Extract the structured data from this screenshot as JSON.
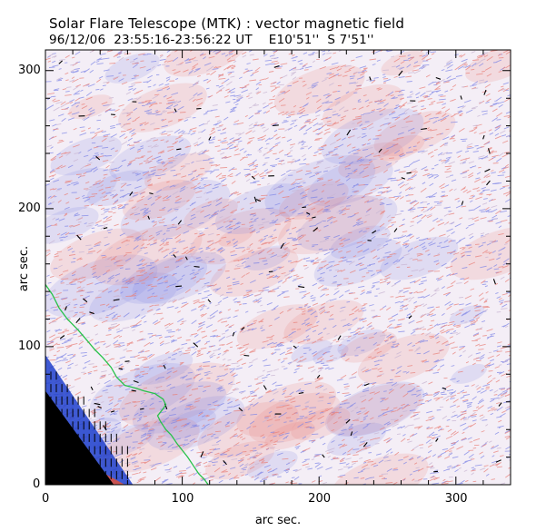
{
  "chart_data": {
    "type": "heatmap",
    "title": "Solar Flare Telescope (MTK) : vector magnetic field",
    "subtitle": {
      "date": "96/12/06",
      "time_range": "23:55:16-23:56:22 UT",
      "lon": "E10'51''",
      "lat": "S 7'51''"
    },
    "xlabel": "arc sec.",
    "ylabel": "arc sec.",
    "xlim": [
      0,
      340
    ],
    "ylim": [
      0,
      315
    ],
    "x_ticks": [
      {
        "value": 0,
        "label": "0"
      },
      {
        "value": 100,
        "label": "100"
      },
      {
        "value": 200,
        "label": "200"
      },
      {
        "value": 300,
        "label": "300"
      }
    ],
    "y_ticks": [
      {
        "value": 0,
        "label": "0"
      },
      {
        "value": 100,
        "label": "100"
      },
      {
        "value": 200,
        "label": "200"
      },
      {
        "value": 300,
        "label": "300"
      }
    ],
    "field_colors": {
      "positive": "#e8807a",
      "negative": "#7f86e6",
      "mixed": "#c9b6d3",
      "limb_blue": "#1f3fcc",
      "limb_red": "#e0523a",
      "off_disk": "#000000",
      "contour": "#28c24a",
      "vectors": "#000000"
    },
    "limb_contour": [
      [
        0,
        145
      ],
      [
        5,
        138
      ],
      [
        10,
        128
      ],
      [
        16,
        120
      ],
      [
        24,
        112
      ],
      [
        30,
        105
      ],
      [
        36,
        98
      ],
      [
        42,
        92
      ],
      [
        48,
        85
      ],
      [
        52,
        78
      ],
      [
        58,
        72
      ],
      [
        66,
        70
      ],
      [
        72,
        68
      ],
      [
        80,
        66
      ],
      [
        86,
        62
      ],
      [
        88,
        58
      ],
      [
        86,
        55
      ],
      [
        82,
        50
      ],
      [
        84,
        46
      ],
      [
        88,
        40
      ],
      [
        92,
        36
      ],
      [
        96,
        30
      ],
      [
        100,
        25
      ],
      [
        104,
        20
      ],
      [
        108,
        14
      ],
      [
        112,
        8
      ],
      [
        116,
        4
      ],
      [
        119,
        0
      ]
    ],
    "limb_edge": [
      [
        0,
        68
      ],
      [
        50,
        0
      ]
    ]
  }
}
